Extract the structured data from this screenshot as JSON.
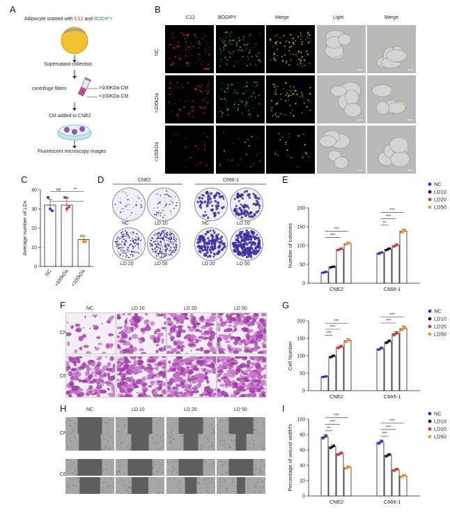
{
  "panels": {
    "A": "A",
    "B": "B",
    "C": "C",
    "D": "D",
    "E": "E",
    "F": "F",
    "G": "G",
    "H": "H",
    "I": "I"
  },
  "panel_a": {
    "title_prefix": "Adipocyte stained with ",
    "title_c12": "C12",
    "title_and": " and ",
    "title_bodipy": "BODIPY",
    "step1": "Supernatant collection",
    "step2": "centrifuge filters",
    "gt": ">100KDa CM",
    "lt": "<100KDa CM",
    "step3": "CM added to CNE2",
    "step4": "Fluorescent microscopy images",
    "colors": {
      "c12": "#e0262a",
      "bodipy": "#2aa05a",
      "fat": "#f2c12e"
    }
  },
  "panel_b": {
    "columns": [
      "C12",
      "BODIPY",
      "Merge",
      "Light",
      "Merge"
    ],
    "rows": [
      "NC",
      ">100kDa",
      "<100kDa"
    ]
  },
  "legend": {
    "NC": "NC",
    "LD10": "LD10",
    "LD20": "LD20",
    "LD50": "LD50",
    "colors": {
      "NC": "#2b35d6",
      "LD10": "#111111",
      "LD20": "#e53030",
      "LD50": "#f39a1e"
    }
  },
  "panel_d": {
    "cne2": "CNE2",
    "c666": "C666-1",
    "nc": "NC",
    "ld10": "LD 10",
    "ld20": "LD 20",
    "ld50": "LD 50"
  },
  "panel_f": {
    "cols": [
      "NC",
      "LD 10",
      "LD 20",
      "LD 50"
    ],
    "rows": [
      "CNE2",
      "C666-1"
    ]
  },
  "panel_h": {
    "cols": [
      "NC",
      "LD 10",
      "LD 20",
      "LD 50"
    ],
    "rows": [
      "CNE2",
      "C666-1"
    ],
    "t0": "0h",
    "t24": "24h"
  },
  "chart_data": [
    {
      "id": "C",
      "type": "bar",
      "categories": [
        "NC",
        ">100kDa",
        "<100kDa"
      ],
      "values": [
        32,
        32,
        14
      ],
      "errors": [
        3,
        4,
        2
      ],
      "points": [
        [
          36,
          30,
          29
        ],
        [
          36,
          30,
          31
        ],
        [
          16,
          13,
          13
        ]
      ],
      "ylabel": "Average number of LDs",
      "ylim": [
        0,
        40
      ],
      "yticks": [
        0,
        10,
        20,
        30,
        40
      ],
      "significance": [
        {
          "pair": [
            0,
            1
          ],
          "label": "ns"
        },
        {
          "pair": [
            1,
            2
          ],
          "label": "**"
        },
        {
          "pair": [
            0,
            2
          ],
          "label": "**"
        }
      ]
    },
    {
      "id": "E",
      "type": "bar",
      "groups": [
        "CNE2",
        "C666-1"
      ],
      "series": [
        {
          "name": "NC",
          "values": [
            29,
            80
          ]
        },
        {
          "name": "LD10",
          "values": [
            43,
            90
          ]
        },
        {
          "name": "LD20",
          "values": [
            90,
            100
          ]
        },
        {
          "name": "LD50",
          "values": [
            105,
            138
          ]
        }
      ],
      "ylabel": "Number of colonies",
      "ylim": [
        0,
        200
      ],
      "yticks": [
        0,
        50,
        100,
        150,
        200
      ],
      "significance": [
        {
          "group": 0,
          "pair": [
            0,
            3
          ],
          "label": "***"
        },
        {
          "group": 0,
          "pair": [
            0,
            2
          ],
          "label": "***"
        },
        {
          "group": 1,
          "pair": [
            0,
            3
          ],
          "label": "***"
        },
        {
          "group": 1,
          "pair": [
            0,
            2
          ],
          "label": "***"
        },
        {
          "group": 1,
          "pair": [
            0,
            1
          ],
          "label": "**"
        }
      ]
    },
    {
      "id": "G",
      "type": "bar",
      "groups": [
        "CNE2",
        "C666-1"
      ],
      "series": [
        {
          "name": "NC",
          "values": [
            40,
            120
          ]
        },
        {
          "name": "LD10",
          "values": [
            98,
            140
          ]
        },
        {
          "name": "LD20",
          "values": [
            125,
            163
          ]
        },
        {
          "name": "LD50",
          "values": [
            143,
            178
          ]
        }
      ],
      "ylabel": "Cell Number",
      "ylim": [
        0,
        200
      ],
      "yticks": [
        0,
        50,
        100,
        150,
        200
      ],
      "significance": [
        {
          "group": 0,
          "pair": [
            0,
            3
          ],
          "label": "***"
        },
        {
          "group": 0,
          "pair": [
            0,
            2
          ],
          "label": "***"
        },
        {
          "group": 0,
          "pair": [
            0,
            1
          ],
          "label": "***"
        },
        {
          "group": 1,
          "pair": [
            0,
            3
          ],
          "label": "***"
        },
        {
          "group": 1,
          "pair": [
            0,
            2
          ],
          "label": "***"
        }
      ]
    },
    {
      "id": "I",
      "type": "bar",
      "groups": [
        "CNE2",
        "C666-1"
      ],
      "series": [
        {
          "name": "NC",
          "values": [
            77,
            70
          ]
        },
        {
          "name": "LD10",
          "values": [
            64,
            53
          ]
        },
        {
          "name": "LD20",
          "values": [
            55,
            34
          ]
        },
        {
          "name": "LD50",
          "values": [
            37,
            26
          ]
        }
      ],
      "ylabel": "Percentage of wound width%",
      "ylim": [
        0,
        100
      ],
      "yticks": [
        0,
        20,
        40,
        60,
        80,
        100
      ],
      "significance": [
        {
          "group": 0,
          "pair": [
            0,
            3
          ],
          "label": "***"
        },
        {
          "group": 0,
          "pair": [
            0,
            2
          ],
          "label": "***"
        },
        {
          "group": 0,
          "pair": [
            0,
            1
          ],
          "label": "**"
        },
        {
          "group": 1,
          "pair": [
            0,
            3
          ],
          "label": "***"
        },
        {
          "group": 1,
          "pair": [
            0,
            2
          ],
          "label": "***"
        },
        {
          "group": 1,
          "pair": [
            0,
            1
          ],
          "label": "***"
        }
      ]
    }
  ]
}
